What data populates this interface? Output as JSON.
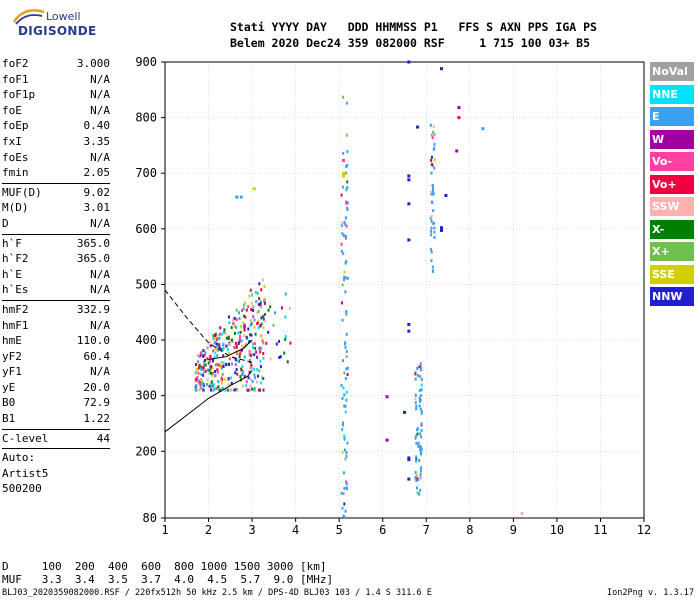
{
  "logo": {
    "top": "Lowell",
    "bottom": "DIGISONDE"
  },
  "header": {
    "line1": "Stati YYYY DAY   DDD HHMMSS P1   FFS S AXN PPS IGA PS",
    "line2": "Belem 2020 Dec24 359 082000 RSF     1 715 100 03+ B5"
  },
  "params": [
    {
      "name": "foF2",
      "value": "3.000"
    },
    {
      "name": "foF1",
      "value": "N/A"
    },
    {
      "name": "foF1p",
      "value": "N/A"
    },
    {
      "name": "foE",
      "value": "N/A"
    },
    {
      "name": "foEp",
      "value": "0.40"
    },
    {
      "name": "fxI",
      "value": "3.35"
    },
    {
      "name": "foEs",
      "value": "N/A"
    },
    {
      "name": "fmin",
      "value": "2.05"
    },
    {
      "sep": true
    },
    {
      "name": "MUF(D)",
      "value": "9.02"
    },
    {
      "name": "M(D)",
      "value": "3.01"
    },
    {
      "name": "D",
      "value": "N/A"
    },
    {
      "sep": true
    },
    {
      "name": "h`F",
      "value": "365.0"
    },
    {
      "name": "h`F2",
      "value": "365.0"
    },
    {
      "name": "h`E",
      "value": "N/A"
    },
    {
      "name": "h`Es",
      "value": "N/A"
    },
    {
      "sep": true
    },
    {
      "name": "hmF2",
      "value": "332.9"
    },
    {
      "name": "hmF1",
      "value": "N/A"
    },
    {
      "name": "hmE",
      "value": "110.0"
    },
    {
      "name": "yF2",
      "value": "60.4"
    },
    {
      "name": "yF1",
      "value": "N/A"
    },
    {
      "name": "yE",
      "value": "20.0"
    },
    {
      "name": "B0",
      "value": "72.9"
    },
    {
      "name": "B1",
      "value": "1.22"
    },
    {
      "sep": true
    },
    {
      "name": "C-level",
      "value": "44"
    },
    {
      "sep": true
    },
    {
      "name": "Auto:",
      "value": ""
    },
    {
      "name": "Artist5",
      "value": ""
    },
    {
      "name": "500200",
      "value": ""
    }
  ],
  "muf_table": {
    "d_line": "D     100  200  400  600  800 1000 1500 3000 [km]",
    "muf_line": "MUF   3.3  3.4  3.5  3.7  4.0  4.5  5.7  9.0 [MHz]"
  },
  "footer": {
    "left": "BLJ03_2020359082000.RSF / 220fx512h 50 kHz 2.5 km / DPS-4D BLJ03 103 / 1.4 S 311.6 E",
    "right": "Ion2Png v. 1.3.17"
  },
  "legend": [
    {
      "label": "NoVal",
      "color": "#a0a0a0"
    },
    {
      "label": "NNE",
      "color": "#00e0ff"
    },
    {
      "label": "E",
      "color": "#3aa0f0"
    },
    {
      "label": "W",
      "color": "#a000a0"
    },
    {
      "label": "Vo-",
      "color": "#ff40a0"
    },
    {
      "label": "Vo+",
      "color": "#f00040"
    },
    {
      "label": "SSW",
      "color": "#ffb0b0"
    },
    {
      "label": "X-",
      "color": "#008000"
    },
    {
      "label": "X+",
      "color": "#70c050"
    },
    {
      "label": "SSE",
      "color": "#d0d000"
    },
    {
      "label": "NNW",
      "color": "#2020d0"
    }
  ],
  "chart_data": {
    "type": "scatter",
    "xlabel": "",
    "ylabel": "",
    "xlim": [
      1,
      12
    ],
    "ylim": [
      80,
      900
    ],
    "x_ticks": [
      1,
      2,
      3,
      4,
      5,
      6,
      7,
      8,
      9,
      10,
      11,
      12
    ],
    "y_ticks": [
      80,
      200,
      300,
      400,
      500,
      600,
      700,
      800,
      900
    ],
    "grid": true,
    "legend_position": "right",
    "clusters": [
      {
        "name": "F-trace",
        "x_range": [
          1.7,
          3.3
        ],
        "y_range": [
          310,
          560
        ],
        "count": 380
      },
      {
        "name": "F-trace-extension",
        "x_range": [
          3.2,
          3.9
        ],
        "y_range": [
          360,
          490
        ],
        "count": 25
      },
      {
        "name": "column-5.1",
        "x_range": [
          5.05,
          5.2
        ],
        "y_range": [
          80,
          840
        ],
        "count": 90
      },
      {
        "name": "column-6.8",
        "x_range": [
          6.75,
          6.9
        ],
        "y_range": [
          120,
          360
        ],
        "count": 70
      },
      {
        "name": "column-7.15",
        "x_range": [
          7.1,
          7.2
        ],
        "y_range": [
          520,
          790
        ],
        "count": 45
      }
    ],
    "points": [
      {
        "x": 2.65,
        "y": 657,
        "color": "#3aa0f0"
      },
      {
        "x": 2.75,
        "y": 657,
        "color": "#3aa0f0"
      },
      {
        "x": 6.6,
        "y": 900,
        "color": "#2020d0"
      },
      {
        "x": 7.35,
        "y": 888,
        "color": "#2020d0"
      },
      {
        "x": 7.75,
        "y": 818,
        "color": "#a000a0"
      },
      {
        "x": 7.75,
        "y": 800,
        "color": "#f00040"
      },
      {
        "x": 6.8,
        "y": 783,
        "color": "#2020d0"
      },
      {
        "x": 8.3,
        "y": 780,
        "color": "#3aa0f0"
      },
      {
        "x": 7.7,
        "y": 740,
        "color": "#a000a0"
      },
      {
        "x": 6.6,
        "y": 695,
        "color": "#2020d0"
      },
      {
        "x": 6.6,
        "y": 688,
        "color": "#2020d0"
      },
      {
        "x": 7.45,
        "y": 660,
        "color": "#2020d0"
      },
      {
        "x": 6.6,
        "y": 645,
        "color": "#2020d0"
      },
      {
        "x": 7.35,
        "y": 602,
        "color": "#2020d0"
      },
      {
        "x": 7.35,
        "y": 597,
        "color": "#2020d0"
      },
      {
        "x": 6.6,
        "y": 580,
        "color": "#2020d0"
      },
      {
        "x": 6.6,
        "y": 428,
        "color": "#2020d0"
      },
      {
        "x": 6.6,
        "y": 416,
        "color": "#2020d0"
      },
      {
        "x": 6.1,
        "y": 298,
        "color": "#a000a0"
      },
      {
        "x": 6.5,
        "y": 270,
        "color": "#2020d0"
      },
      {
        "x": 6.1,
        "y": 220,
        "color": "#a000a0"
      },
      {
        "x": 6.6,
        "y": 188,
        "color": "#2020d0"
      },
      {
        "x": 6.6,
        "y": 185,
        "color": "#2020d0"
      },
      {
        "x": 6.6,
        "y": 150,
        "color": "#2020d0"
      },
      {
        "x": 9.2,
        "y": 88,
        "color": "#ffb0b0"
      },
      {
        "x": 5.1,
        "y": 700,
        "color": "#d0d000"
      },
      {
        "x": 5.1,
        "y": 695,
        "color": "#d0d000"
      },
      {
        "x": 5.1,
        "y": 723,
        "color": "#ff40a0"
      },
      {
        "x": 3.05,
        "y": 672,
        "color": "#d0d000"
      }
    ],
    "curves": [
      {
        "name": "solid-profile",
        "style": "solid",
        "x": [
          1,
          1.5,
          2,
          2.5,
          2.9,
          3.0
        ],
        "y": [
          235,
          265,
          295,
          318,
          335,
          345
        ]
      },
      {
        "name": "dashed-profile",
        "style": "dashed",
        "x": [
          1,
          1.5,
          2,
          2.5,
          3.0
        ],
        "y": [
          490,
          440,
          395,
          370,
          360
        ]
      },
      {
        "name": "extrapolation-curve",
        "style": "solid",
        "x": [
          2.0,
          2.4,
          2.8,
          3.0
        ],
        "y": [
          365,
          370,
          385,
          400
        ]
      }
    ]
  }
}
